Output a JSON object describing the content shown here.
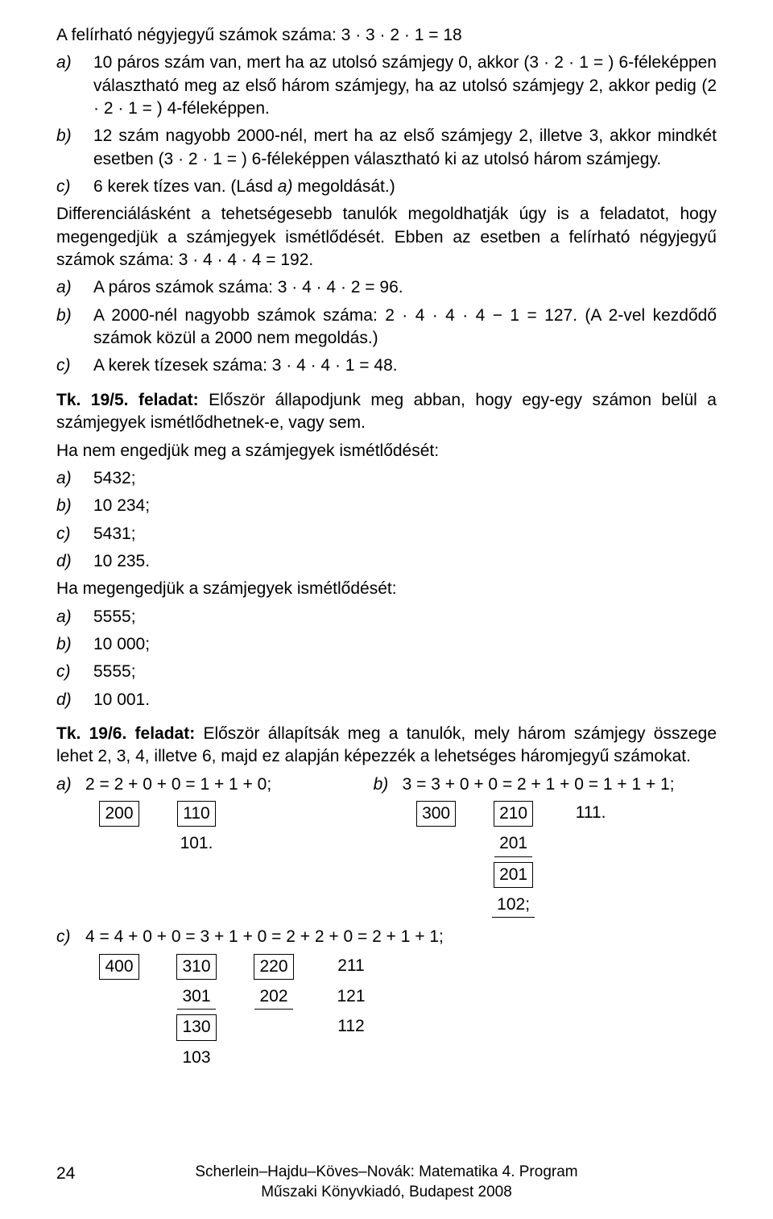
{
  "intro": "A felírható négyjegyű számok száma: 3 · 3 · 2 · 1 = 18",
  "list1": {
    "a": {
      "lbl": "a)",
      "txt": "10 páros szám van, mert ha az utolsó számjegy 0, akkor (3 · 2 · 1 = ) 6-féleképpen választható meg az első három számjegy, ha az utolsó számjegy 2, akkor pedig (2 · 2 · 1 = ) 4-féleképpen."
    },
    "b": {
      "lbl": "b)",
      "txt": "12 szám nagyobb 2000-nél, mert ha az első számjegy 2, illetve 3, akkor mindkét esetben (3 · 2 · 1 = ) 6-féleképpen választható ki az utolsó három számjegy."
    },
    "c": {
      "lbl": "c)",
      "txt": "6 kerek tízes van. (Lásd ",
      "txt_ital": "a)",
      "txt2": " megoldását.)"
    }
  },
  "diff_para": "Differenciálásként a tehetségesebb tanulók megoldhatják úgy is a feladatot, hogy megengedjük a számjegyek ismétlődését. Ebben az esetben a felírható négyjegyű számok száma: 3 · 4 · 4 · 4 = 192.",
  "list2": {
    "a": {
      "lbl": "a)",
      "txt": "A páros számok száma: 3 · 4 · 4 · 2 = 96."
    },
    "b": {
      "lbl": "b)",
      "txt": "A 2000-nél nagyobb számok száma: 2 · 4 · 4 · 4 − 1 = 127. (A 2-vel kezdődő számok közül a 2000 nem megoldás.)"
    },
    "c": {
      "lbl": "c)",
      "txt": "A kerek tízesek száma: 3 · 4 · 4 · 1 = 48."
    }
  },
  "tk5": {
    "head_tk": "Tk.  19/5.  feladat:",
    "head_rest": " Először állapodjunk meg abban,  hogy egy-egy számon belül a számjegyek ismétlődhetnek-e, vagy sem.",
    "line1": "Ha nem engedjük meg a számjegyek ismétlődését:",
    "set1": {
      "a": {
        "lbl": "a)",
        "txt": "5432;"
      },
      "b": {
        "lbl": "b)",
        "txt": "10 234;"
      },
      "c": {
        "lbl": "c)",
        "txt": "5431;"
      },
      "d": {
        "lbl": "d)",
        "txt": "10 235."
      }
    },
    "line2": "Ha megengedjük a számjegyek ismétlődését:",
    "set2": {
      "a": {
        "lbl": "a)",
        "txt": "5555;"
      },
      "b": {
        "lbl": "b)",
        "txt": "10 000;"
      },
      "c": {
        "lbl": "c)",
        "txt": "5555;"
      },
      "d": {
        "lbl": "d)",
        "txt": "10 001."
      }
    }
  },
  "tk6": {
    "head_tk": "Tk.  19/6.  feladat:",
    "head_rest": " Először állapítsák meg a tanulók,  mely három számjegy összege lehet 2, 3, 4, illetve 6, majd ez alapján képezzék a lehetséges háromjegyű számokat.",
    "a": {
      "lbl": "a)",
      "eq": "2 = 2 + 0 + 0 = 1 + 1 + 0;"
    },
    "b": {
      "lbl": "b)",
      "eq": "3 = 3 + 0 + 0 = 2 + 1 + 0 = 1 + 1 + 1;"
    },
    "grid_a": [
      [
        {
          "v": "200",
          "s": "boxed"
        },
        {
          "v": "110",
          "s": "boxed"
        }
      ],
      [
        {
          "v": "",
          "s": "plain"
        },
        {
          "v": "101.",
          "s": "plain"
        }
      ]
    ],
    "grid_b": [
      [
        {
          "v": "300",
          "s": "boxed"
        },
        {
          "v": "210",
          "s": "boxed"
        },
        {
          "v": "111.",
          "s": "plain"
        }
      ],
      [
        {
          "v": "",
          "s": "plain"
        },
        {
          "v": "201",
          "s": "under"
        },
        {
          "v": "",
          "s": "plain"
        }
      ],
      [
        {
          "v": "",
          "s": "plain"
        },
        {
          "v": "201",
          "s": "boxed"
        },
        {
          "v": "",
          "s": "plain"
        }
      ],
      [
        {
          "v": "",
          "s": "plain"
        },
        {
          "v": "102;",
          "s": "under"
        },
        {
          "v": "",
          "s": "plain"
        }
      ]
    ],
    "c": {
      "lbl": "c)",
      "eq": "4 = 4 + 0 + 0 = 3 + 1 + 0 = 2 + 2 + 0 = 2 + 1 + 1;"
    },
    "grid_c": [
      [
        {
          "v": "400",
          "s": "boxed"
        },
        {
          "v": "310",
          "s": "boxed"
        },
        {
          "v": "220",
          "s": "boxed"
        },
        {
          "v": "211",
          "s": "plain"
        }
      ],
      [
        {
          "v": "",
          "s": "plain"
        },
        {
          "v": "301",
          "s": "under"
        },
        {
          "v": "202",
          "s": "under"
        },
        {
          "v": "121",
          "s": "plain"
        }
      ],
      [
        {
          "v": "",
          "s": "plain"
        },
        {
          "v": "130",
          "s": "boxed"
        },
        {
          "v": "",
          "s": "plain"
        },
        {
          "v": "112",
          "s": "plain"
        }
      ],
      [
        {
          "v": "",
          "s": "plain"
        },
        {
          "v": "103",
          "s": "plain"
        },
        {
          "v": "",
          "s": "plain"
        },
        {
          "v": "",
          "s": "plain"
        }
      ]
    ]
  },
  "footer": {
    "pagenum": "24",
    "line1": "Scherlein–Hajdu–Köves–Novák: Matematika 4. Program",
    "line2": "Műszaki Könyvkiadó, Budapest 2008"
  }
}
